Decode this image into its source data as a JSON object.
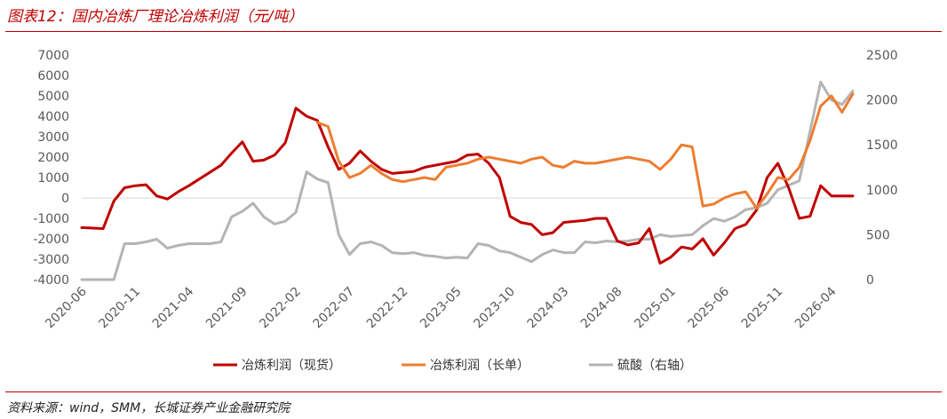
{
  "header": {
    "title": "图表12：国内冶炼厂理论冶炼利润（元/吨）"
  },
  "footer": {
    "source": "资料来源：wind，SMM，长城证券产业金融研究院"
  },
  "colors": {
    "accent": "#c00000",
    "spot": "#c00000",
    "long": "#ed7d31",
    "acid": "#b4b4b4",
    "axis": "#d9d9d9"
  },
  "chart_data": {
    "type": "line",
    "title": "",
    "x_ticks": [
      "2020-06",
      "2020-11",
      "2021-04",
      "2021-09",
      "2022-02",
      "2022-07",
      "2022-12",
      "2023-05",
      "2023-10",
      "2024-03",
      "2024-08",
      "2025-01",
      "2025-06",
      "2025-11",
      "2026-04"
    ],
    "ylim_left": [
      -4000,
      7000
    ],
    "yticks_left": [
      -4000,
      -3000,
      -2000,
      -1000,
      0,
      1000,
      2000,
      3000,
      4000,
      5000,
      6000,
      7000
    ],
    "ylim_right": [
      0,
      2500
    ],
    "yticks_right": [
      0,
      500,
      1000,
      1500,
      2000,
      2500
    ],
    "legend_position": "bottom",
    "series": [
      {
        "name": "冶炼利润（现货）",
        "axis": "left",
        "x": [
          "2020-06",
          "2020-08",
          "2020-09",
          "2020-10",
          "2020-11",
          "2020-12",
          "2021-01",
          "2021-02",
          "2021-03",
          "2021-04",
          "2021-07",
          "2021-08",
          "2021-09",
          "2021-10",
          "2021-11",
          "2021-12",
          "2022-01",
          "2022-02",
          "2022-03",
          "2022-04",
          "2022-05",
          "2022-06",
          "2022-07",
          "2022-08",
          "2022-09",
          "2022-10",
          "2022-11",
          "2022-12",
          "2023-01",
          "2023-02",
          "2023-03",
          "2023-04",
          "2023-05",
          "2023-06",
          "2023-07",
          "2023-08",
          "2023-09",
          "2023-10",
          "2023-11",
          "2023-12",
          "2024-01",
          "2024-02",
          "2024-03",
          "2024-04",
          "2024-05",
          "2024-06",
          "2024-07",
          "2024-08",
          "2024-09",
          "2024-10",
          "2024-11",
          "2024-12",
          "2025-01",
          "2025-02",
          "2025-03",
          "2025-04",
          "2025-05",
          "2025-06",
          "2025-07",
          "2025-08",
          "2025-09",
          "2025-10",
          "2025-11",
          "2025-12",
          "2026-01",
          "2026-02",
          "2026-03",
          "2026-04",
          "2026-05",
          "2026-06"
        ],
        "values": [
          -1450,
          -1500,
          -150,
          500,
          600,
          650,
          100,
          -50,
          300,
          600,
          1600,
          2200,
          2750,
          1800,
          1850,
          2100,
          2700,
          4400,
          4000,
          3800,
          2500,
          1400,
          1700,
          2300,
          1800,
          1400,
          1200,
          1250,
          1300,
          1500,
          1600,
          1700,
          1800,
          2100,
          2150,
          1700,
          1000,
          -900,
          -1200,
          -1300,
          -1800,
          -1700,
          -1200,
          -1150,
          -1100,
          -1000,
          -1000,
          -2100,
          -2300,
          -2200,
          -1500,
          -3200,
          -2900,
          -2400,
          -2500,
          -2000,
          -2800,
          -2200,
          -1500,
          -1300,
          -600,
          1000,
          1700,
          500,
          -1000,
          -900,
          600,
          100,
          100,
          100
        ]
      },
      {
        "name": "冶炼利润（长单）",
        "axis": "left",
        "x": [
          "2022-04",
          "2022-05",
          "2022-06",
          "2022-07",
          "2022-08",
          "2022-09",
          "2022-10",
          "2022-11",
          "2022-12",
          "2023-01",
          "2023-02",
          "2023-03",
          "2023-04",
          "2023-05",
          "2023-06",
          "2023-07",
          "2023-08",
          "2023-09",
          "2023-10",
          "2023-11",
          "2023-12",
          "2024-01",
          "2024-02",
          "2024-03",
          "2024-04",
          "2024-05",
          "2024-06",
          "2024-07",
          "2024-08",
          "2024-09",
          "2024-10",
          "2024-11",
          "2024-12",
          "2025-01",
          "2025-02",
          "2025-03",
          "2025-04",
          "2025-05",
          "2025-06",
          "2025-07",
          "2025-08",
          "2025-09",
          "2025-10",
          "2025-11",
          "2025-12",
          "2026-01",
          "2026-02",
          "2026-03",
          "2026-04",
          "2026-05",
          "2026-06"
        ],
        "values": [
          3700,
          3500,
          1800,
          1000,
          1200,
          1600,
          1200,
          900,
          800,
          900,
          1000,
          900,
          1500,
          1600,
          1700,
          1900,
          2000,
          1900,
          1800,
          1700,
          1900,
          2000,
          1600,
          1500,
          1800,
          1700,
          1700,
          1800,
          1900,
          2000,
          1900,
          1800,
          1400,
          1900,
          2600,
          2500,
          -400,
          -300,
          0,
          200,
          300,
          -500,
          200,
          1000,
          900,
          1500,
          2800,
          4500,
          5000,
          4200,
          5100
        ]
      },
      {
        "name": "硫酸（右轴）",
        "axis": "right",
        "x": [
          "2020-06",
          "2020-07",
          "2020-08",
          "2020-09",
          "2020-10",
          "2020-11",
          "2020-12",
          "2021-01",
          "2021-02",
          "2021-03",
          "2021-04",
          "2021-06",
          "2021-07",
          "2021-08",
          "2021-09",
          "2021-10",
          "2021-11",
          "2021-12",
          "2022-01",
          "2022-02",
          "2022-03",
          "2022-04",
          "2022-05",
          "2022-06",
          "2022-07",
          "2022-08",
          "2022-09",
          "2022-10",
          "2022-11",
          "2022-12",
          "2023-01",
          "2023-02",
          "2023-03",
          "2023-04",
          "2023-05",
          "2023-06",
          "2023-07",
          "2023-08",
          "2023-09",
          "2023-10",
          "2023-11",
          "2023-12",
          "2024-01",
          "2024-02",
          "2024-03",
          "2024-04",
          "2024-05",
          "2024-06",
          "2024-07",
          "2024-08",
          "2024-09",
          "2024-10",
          "2024-11",
          "2024-12",
          "2025-01",
          "2025-02",
          "2025-03",
          "2025-04",
          "2025-05",
          "2025-06",
          "2025-07",
          "2025-08",
          "2025-09",
          "2025-10",
          "2025-11",
          "2025-12",
          "2026-01",
          "2026-02",
          "2026-03",
          "2026-04",
          "2026-05",
          "2026-06"
        ],
        "values": [
          0,
          0,
          0,
          0,
          400,
          400,
          420,
          450,
          350,
          380,
          400,
          400,
          420,
          700,
          760,
          850,
          700,
          620,
          650,
          750,
          1200,
          1120,
          1080,
          500,
          280,
          400,
          420,
          380,
          300,
          290,
          300,
          270,
          260,
          240,
          250,
          240,
          400,
          380,
          320,
          300,
          250,
          200,
          280,
          330,
          300,
          300,
          420,
          410,
          430,
          420,
          430,
          450,
          450,
          500,
          480,
          490,
          500,
          600,
          680,
          650,
          700,
          780,
          800,
          850,
          1000,
          1050,
          1100,
          1650,
          2200,
          2000,
          1950,
          2100
        ]
      }
    ]
  },
  "legend": [
    {
      "label": "冶炼利润（现货）"
    },
    {
      "label": "冶炼利润（长单）"
    },
    {
      "label": "硫酸（右轴）"
    }
  ]
}
